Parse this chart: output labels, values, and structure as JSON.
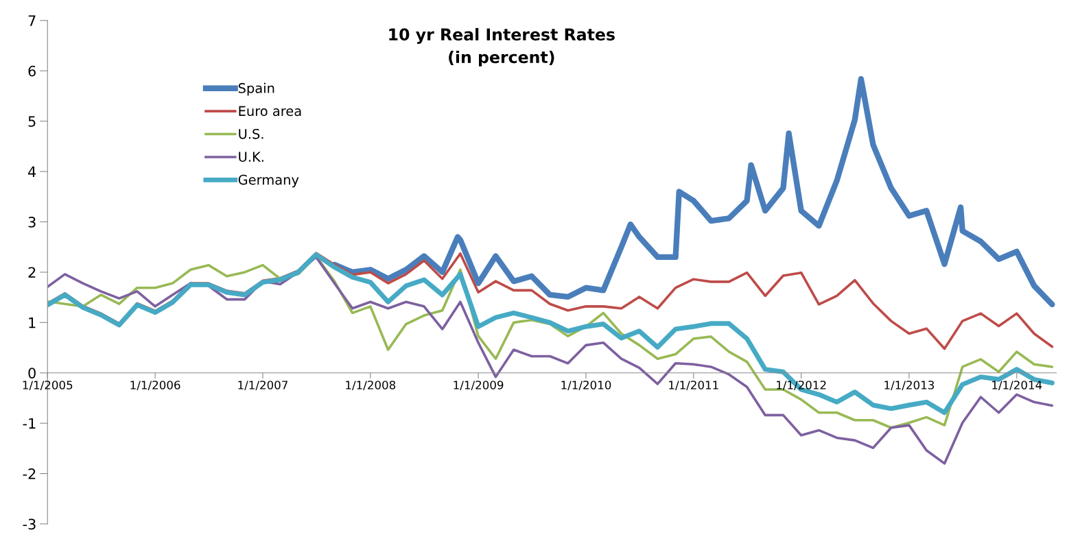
{
  "chart_data": {
    "type": "line",
    "title": "10 yr Real Interest Rates",
    "subtitle": "(in percent)",
    "x": [
      "2005-01",
      "2005-03",
      "2005-05",
      "2005-07",
      "2005-09",
      "2005-11",
      "2006-01",
      "2006-03",
      "2006-05",
      "2006-07",
      "2006-09",
      "2006-11",
      "2007-01",
      "2007-03",
      "2007-05",
      "2007-07",
      "2007-09",
      "2007-11",
      "2008-01",
      "2008-03",
      "2008-05",
      "2008-07",
      "2008-09",
      "2008-11",
      "2009-01",
      "2009-03",
      "2009-05",
      "2009-07",
      "2009-09",
      "2009-11",
      "2010-01",
      "2010-03",
      "2010-05",
      "2010-07",
      "2010-09",
      "2010-11",
      "2011-01",
      "2011-03",
      "2011-05",
      "2011-07",
      "2011-09",
      "2011-11",
      "2012-01",
      "2012-03",
      "2012-05",
      "2012-07",
      "2012-09",
      "2012-11",
      "2013-01",
      "2013-03",
      "2013-05",
      "2013-07",
      "2013-09",
      "2013-11",
      "2014-01",
      "2014-03",
      "2014-05"
    ],
    "series": [
      {
        "name": "Spain",
        "color": "#4a7ebb",
        "x": [
          "2007-09",
          "2007-11",
          "2008-01",
          "2008-03",
          "2008-05",
          "2008-07",
          "2008-09",
          "2008-10-23",
          "2008-11",
          "2009-01",
          "2009-03",
          "2009-05",
          "2009-07",
          "2009-09",
          "2009-11",
          "2010-01",
          "2010-03",
          "2010-05",
          "2010-06",
          "2010-07",
          "2010-09",
          "2010-11",
          "2010-11-13",
          "2011-01",
          "2011-03",
          "2011-05",
          "2011-07",
          "2011-07-15",
          "2011-09",
          "2011-11",
          "2011-11-20",
          "2012-01",
          "2012-03",
          "2012-05",
          "2012-07",
          "2012-07-22",
          "2012-09",
          "2012-11",
          "2013-01",
          "2013-03",
          "2013-05",
          "2013-06-25",
          "2013-07",
          "2013-09",
          "2013-11",
          "2014-01",
          "2014-03",
          "2014-05"
        ],
        "values": [
          2.15,
          2.0,
          2.05,
          1.87,
          2.05,
          2.32,
          2.0,
          2.7,
          2.64,
          1.78,
          2.32,
          1.82,
          1.92,
          1.55,
          1.51,
          1.69,
          1.64,
          2.5,
          2.95,
          2.7,
          2.3,
          2.3,
          3.6,
          3.42,
          3.02,
          3.07,
          3.42,
          4.13,
          3.22,
          3.67,
          4.76,
          3.22,
          2.92,
          3.82,
          5.03,
          5.84,
          4.53,
          3.67,
          3.12,
          3.22,
          2.16,
          3.29,
          2.82,
          2.61,
          2.26,
          2.41,
          1.73,
          1.36
        ]
      },
      {
        "name": "Euro area",
        "color": "#be4b48",
        "values": [
          1.38,
          1.58,
          1.33,
          1.18,
          0.98,
          1.38,
          1.23,
          1.43,
          1.78,
          1.78,
          1.63,
          1.58,
          1.83,
          1.88,
          2.03,
          2.38,
          2.15,
          1.95,
          2.0,
          1.78,
          1.96,
          2.23,
          1.87,
          2.37,
          1.6,
          1.82,
          1.64,
          1.64,
          1.37,
          1.24,
          1.32,
          1.32,
          1.28,
          1.51,
          1.28,
          1.69,
          1.86,
          1.81,
          1.81,
          1.99,
          1.53,
          1.93,
          1.99,
          1.36,
          1.53,
          1.84,
          1.38,
          1.03,
          0.78,
          0.88,
          0.48,
          1.03,
          1.18,
          0.93,
          1.18,
          0.78,
          0.52
        ]
      },
      {
        "name": "U.S.",
        "color": "#98b954",
        "values": [
          1.42,
          1.37,
          1.32,
          1.55,
          1.37,
          1.69,
          1.69,
          1.78,
          2.05,
          2.14,
          1.92,
          2.0,
          2.14,
          1.87,
          1.96,
          2.32,
          1.82,
          1.19,
          1.32,
          0.46,
          0.97,
          1.14,
          1.24,
          2.05,
          0.73,
          0.28,
          1.0,
          1.05,
          0.97,
          0.73,
          0.92,
          1.19,
          0.78,
          0.55,
          0.28,
          0.37,
          0.68,
          0.72,
          0.42,
          0.22,
          -0.33,
          -0.33,
          -0.53,
          -0.79,
          -0.79,
          -0.94,
          -0.94,
          -1.09,
          -0.99,
          -0.88,
          -1.04,
          0.12,
          0.27,
          0.02,
          0.42,
          0.17,
          0.12
        ]
      },
      {
        "name": "U.K.",
        "color": "#7d60a0",
        "values": [
          1.71,
          1.96,
          1.78,
          1.62,
          1.48,
          1.62,
          1.32,
          1.55,
          1.78,
          1.73,
          1.46,
          1.46,
          1.82,
          1.76,
          2.0,
          2.3,
          1.78,
          1.28,
          1.41,
          1.28,
          1.41,
          1.32,
          0.87,
          1.41,
          0.6,
          -0.08,
          0.46,
          0.33,
          0.33,
          0.19,
          0.55,
          0.6,
          0.28,
          0.1,
          -0.22,
          0.19,
          0.17,
          0.12,
          -0.03,
          -0.28,
          -0.84,
          -0.84,
          -1.24,
          -1.14,
          -1.29,
          -1.34,
          -1.49,
          -1.09,
          -1.04,
          -1.54,
          -1.8,
          -0.99,
          -0.48,
          -0.79,
          -0.43,
          -0.58,
          -0.65
        ]
      },
      {
        "name": "Germany",
        "color": "#46aac5",
        "values": [
          1.35,
          1.55,
          1.3,
          1.15,
          0.95,
          1.35,
          1.2,
          1.4,
          1.75,
          1.75,
          1.6,
          1.55,
          1.8,
          1.85,
          2.0,
          2.35,
          2.1,
          1.9,
          1.8,
          1.41,
          1.73,
          1.85,
          1.55,
          1.96,
          0.92,
          1.1,
          1.19,
          1.1,
          1.0,
          0.83,
          0.92,
          0.97,
          0.69,
          0.83,
          0.51,
          0.87,
          0.92,
          0.98,
          0.98,
          0.68,
          0.07,
          0.02,
          -0.33,
          -0.43,
          -0.58,
          -0.38,
          -0.64,
          -0.71,
          -0.64,
          -0.58,
          -0.79,
          -0.23,
          -0.08,
          -0.13,
          0.07,
          -0.13,
          -0.2
        ]
      }
    ],
    "xlim": [
      "2005-01-01",
      "2014-05-15"
    ],
    "ylim": [
      -3,
      7
    ],
    "yticks": [
      -3,
      -2,
      -1,
      0,
      1,
      2,
      3,
      4,
      5,
      6,
      7
    ],
    "xticks": [
      {
        "value": "2005-01-01",
        "label": "1/1/2005"
      },
      {
        "value": "2006-01-01",
        "label": "1/1/2006"
      },
      {
        "value": "2007-01-01",
        "label": "1/1/2007"
      },
      {
        "value": "2008-01-01",
        "label": "1/1/2008"
      },
      {
        "value": "2009-01-01",
        "label": "1/1/2009"
      },
      {
        "value": "2010-01-01",
        "label": "1/1/2010"
      },
      {
        "value": "2011-01-01",
        "label": "1/1/2011"
      },
      {
        "value": "2012-01-01",
        "label": "1/1/2012"
      },
      {
        "value": "2013-01-01",
        "label": "1/1/2013"
      },
      {
        "value": "2014-01-01",
        "label": "1/1/2014"
      }
    ],
    "legend": "top left"
  }
}
